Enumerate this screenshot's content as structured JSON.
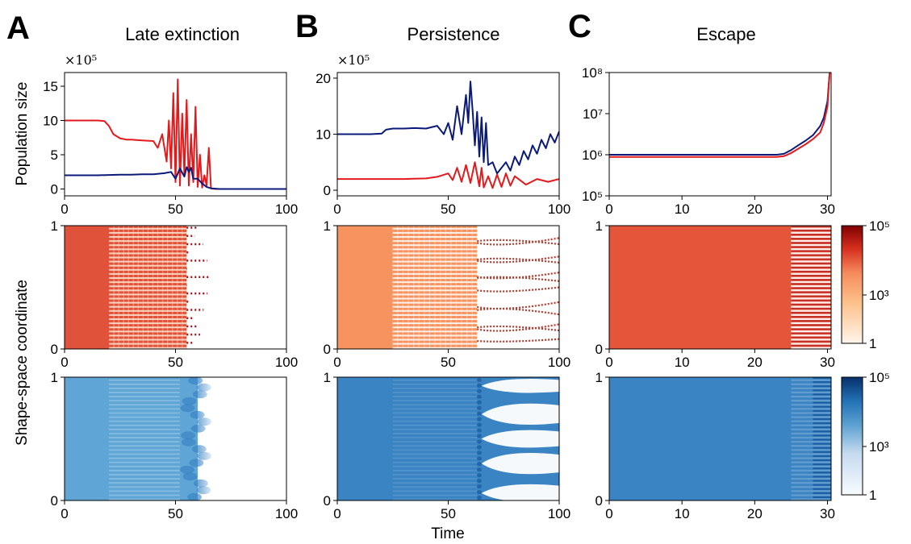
{
  "colors": {
    "red_series": "#e3191c",
    "blue_series": "#0b1a78",
    "red_map_low": "#fff5eb",
    "red_map_mid": "#f58a5c",
    "red_map_high": "#7f0000",
    "blue_map_low": "#f7fbff",
    "blue_map_mid": "#5a9fd0",
    "blue_map_high": "#08306b"
  },
  "labels": {
    "ylabel_top": "Population size",
    "ylabel_bottom": "Shape-space coordinate",
    "xlabel": "Time"
  },
  "panels": [
    {
      "letter": "A",
      "title": "Late extinction",
      "multiplier": "×10⁵",
      "yticks": [
        "0",
        "5",
        "10",
        "15"
      ],
      "xticks": [
        "0",
        "50",
        "100"
      ]
    },
    {
      "letter": "B",
      "title": "Persistence",
      "multiplier": "×10⁵",
      "yticks": [
        "0",
        "10",
        "20"
      ],
      "xticks": [
        "0",
        "50",
        "100"
      ]
    },
    {
      "letter": "C",
      "title": "Escape",
      "multiplier": "",
      "yticks": [
        "10⁵",
        "10⁶",
        "10⁷",
        "10⁸"
      ],
      "xticks": [
        "0",
        "10",
        "20",
        "30"
      ]
    }
  ],
  "heat_yticks": [
    "0",
    "1"
  ],
  "colorbar_ticks": [
    "1",
    "10³",
    "10⁵"
  ],
  "chart_data": [
    {
      "type": "line",
      "panel": "A",
      "title": "Late extinction",
      "ylabel": "Population size",
      "yscale_multiplier": 100000,
      "xlim": [
        0,
        100
      ],
      "ylim": [
        -1,
        17
      ],
      "series": [
        {
          "color": "red",
          "x": [
            0,
            15,
            18,
            20,
            22,
            25,
            28,
            30,
            35,
            40,
            42,
            44,
            46,
            47,
            48,
            49,
            50,
            51,
            52,
            53,
            54,
            55,
            56,
            57,
            58,
            59,
            60,
            61,
            62,
            63,
            64,
            65,
            66,
            68,
            70,
            80,
            100
          ],
          "values": [
            10,
            10,
            9.9,
            9.2,
            8,
            7.4,
            7.2,
            7.2,
            7.1,
            7,
            6,
            8,
            4,
            10,
            3,
            14,
            1,
            16,
            0.5,
            11,
            2,
            13,
            0.5,
            8,
            1,
            12,
            0.3,
            5,
            0.2,
            2,
            0.5,
            6,
            0.1,
            0,
            0,
            0,
            0
          ]
        },
        {
          "color": "blue",
          "x": [
            0,
            15,
            20,
            25,
            30,
            35,
            40,
            45,
            48,
            50,
            52,
            54,
            55,
            56,
            57,
            58,
            60,
            62,
            64,
            66,
            70,
            80,
            100
          ],
          "values": [
            2,
            2,
            2.05,
            2.1,
            2.1,
            2.15,
            2.15,
            2.3,
            2.5,
            1.5,
            3,
            1.8,
            3.2,
            2.5,
            3.1,
            1.5,
            1.5,
            0.8,
            0.3,
            0.1,
            0,
            0,
            0
          ]
        }
      ]
    },
    {
      "type": "line",
      "panel": "B",
      "title": "Persistence",
      "yscale_multiplier": 100000,
      "xlim": [
        0,
        100
      ],
      "ylim": [
        -1,
        21
      ],
      "series": [
        {
          "color": "blue",
          "x": [
            0,
            15,
            20,
            22,
            25,
            30,
            35,
            40,
            45,
            48,
            50,
            52,
            54,
            56,
            58,
            59,
            60,
            61,
            62,
            63,
            64,
            65,
            66,
            67,
            68,
            70,
            72,
            74,
            76,
            78,
            80,
            82,
            84,
            86,
            88,
            90,
            92,
            94,
            96,
            98,
            100
          ],
          "values": [
            10,
            10,
            10.1,
            10.8,
            11,
            11,
            11.1,
            11,
            11.5,
            10,
            12,
            9,
            15,
            10,
            17,
            12,
            19.4,
            14,
            8,
            14,
            6,
            13,
            5,
            12,
            4.5,
            5,
            3,
            4,
            5,
            3.5,
            6,
            4.5,
            7,
            5.5,
            8,
            6.5,
            9,
            7.5,
            10,
            8.5,
            10.5
          ]
        },
        {
          "color": "red",
          "x": [
            0,
            20,
            30,
            40,
            45,
            50,
            52,
            54,
            56,
            58,
            60,
            62,
            64,
            65,
            66,
            68,
            70,
            72,
            74,
            76,
            78,
            80,
            85,
            90,
            95,
            100
          ],
          "values": [
            2,
            2,
            2,
            2.1,
            2.4,
            3,
            1.8,
            4,
            1.5,
            4.5,
            1.3,
            5,
            0.7,
            4,
            0.5,
            2.5,
            0.4,
            2.8,
            0.6,
            3,
            0.8,
            2.5,
            1,
            2,
            1.5,
            2
          ]
        }
      ]
    },
    {
      "type": "line",
      "panel": "C",
      "title": "Escape",
      "yscale": "log",
      "xlim": [
        0,
        30.5
      ],
      "ylim": [
        100000,
        100000000
      ],
      "series": [
        {
          "color": "blue",
          "x": [
            0,
            5,
            10,
            15,
            20,
            23,
            24,
            25,
            26,
            27,
            28,
            29,
            29.5,
            30,
            30.3
          ],
          "values": [
            1000000,
            1000000,
            1000000,
            1000000,
            1000000,
            1000000,
            1050000,
            1300000,
            1700000,
            2200000,
            3000000,
            5000000,
            8000000,
            20000000,
            100000000
          ]
        },
        {
          "color": "red",
          "x": [
            0,
            5,
            10,
            15,
            20,
            23,
            24,
            25,
            26,
            27,
            28,
            29,
            29.5,
            30,
            30.3
          ],
          "values": [
            880000,
            880000,
            880000,
            880000,
            880000,
            880000,
            920000,
            1100000,
            1400000,
            1800000,
            2400000,
            3500000,
            6000000,
            15000000,
            100000000
          ]
        }
      ]
    },
    {
      "type": "heatmap",
      "panel": "A",
      "row": "red",
      "ylabel": "Shape-space coordinate",
      "xlim": [
        0,
        100
      ],
      "ylim": [
        0,
        1
      ],
      "onset": 20,
      "extinct": 65,
      "clim": [
        1,
        100000
      ],
      "colorbar": "log"
    },
    {
      "type": "heatmap",
      "panel": "B",
      "row": "red",
      "xlim": [
        0,
        100
      ],
      "ylim": [
        0,
        1
      ],
      "onset": 25,
      "clim": [
        1,
        100000
      ]
    },
    {
      "type": "heatmap",
      "panel": "C",
      "row": "red",
      "xlim": [
        0,
        30.5
      ],
      "ylim": [
        0,
        1
      ],
      "onset": 25,
      "clim": [
        1,
        100000
      ]
    },
    {
      "type": "heatmap",
      "panel": "A",
      "row": "blue",
      "xlabel": "",
      "xlim": [
        0,
        100
      ],
      "ylim": [
        0,
        1
      ],
      "onset": 20,
      "extinct": 68,
      "clim": [
        1,
        100000
      ]
    },
    {
      "type": "heatmap",
      "panel": "B",
      "row": "blue",
      "xlabel": "Time",
      "xlim": [
        0,
        100
      ],
      "ylim": [
        0,
        1
      ],
      "onset": 25,
      "clim": [
        1,
        100000
      ]
    },
    {
      "type": "heatmap",
      "panel": "C",
      "row": "blue",
      "xlim": [
        0,
        30.5
      ],
      "ylim": [
        0,
        1
      ],
      "onset": 25,
      "clim": [
        1,
        100000
      ]
    }
  ]
}
